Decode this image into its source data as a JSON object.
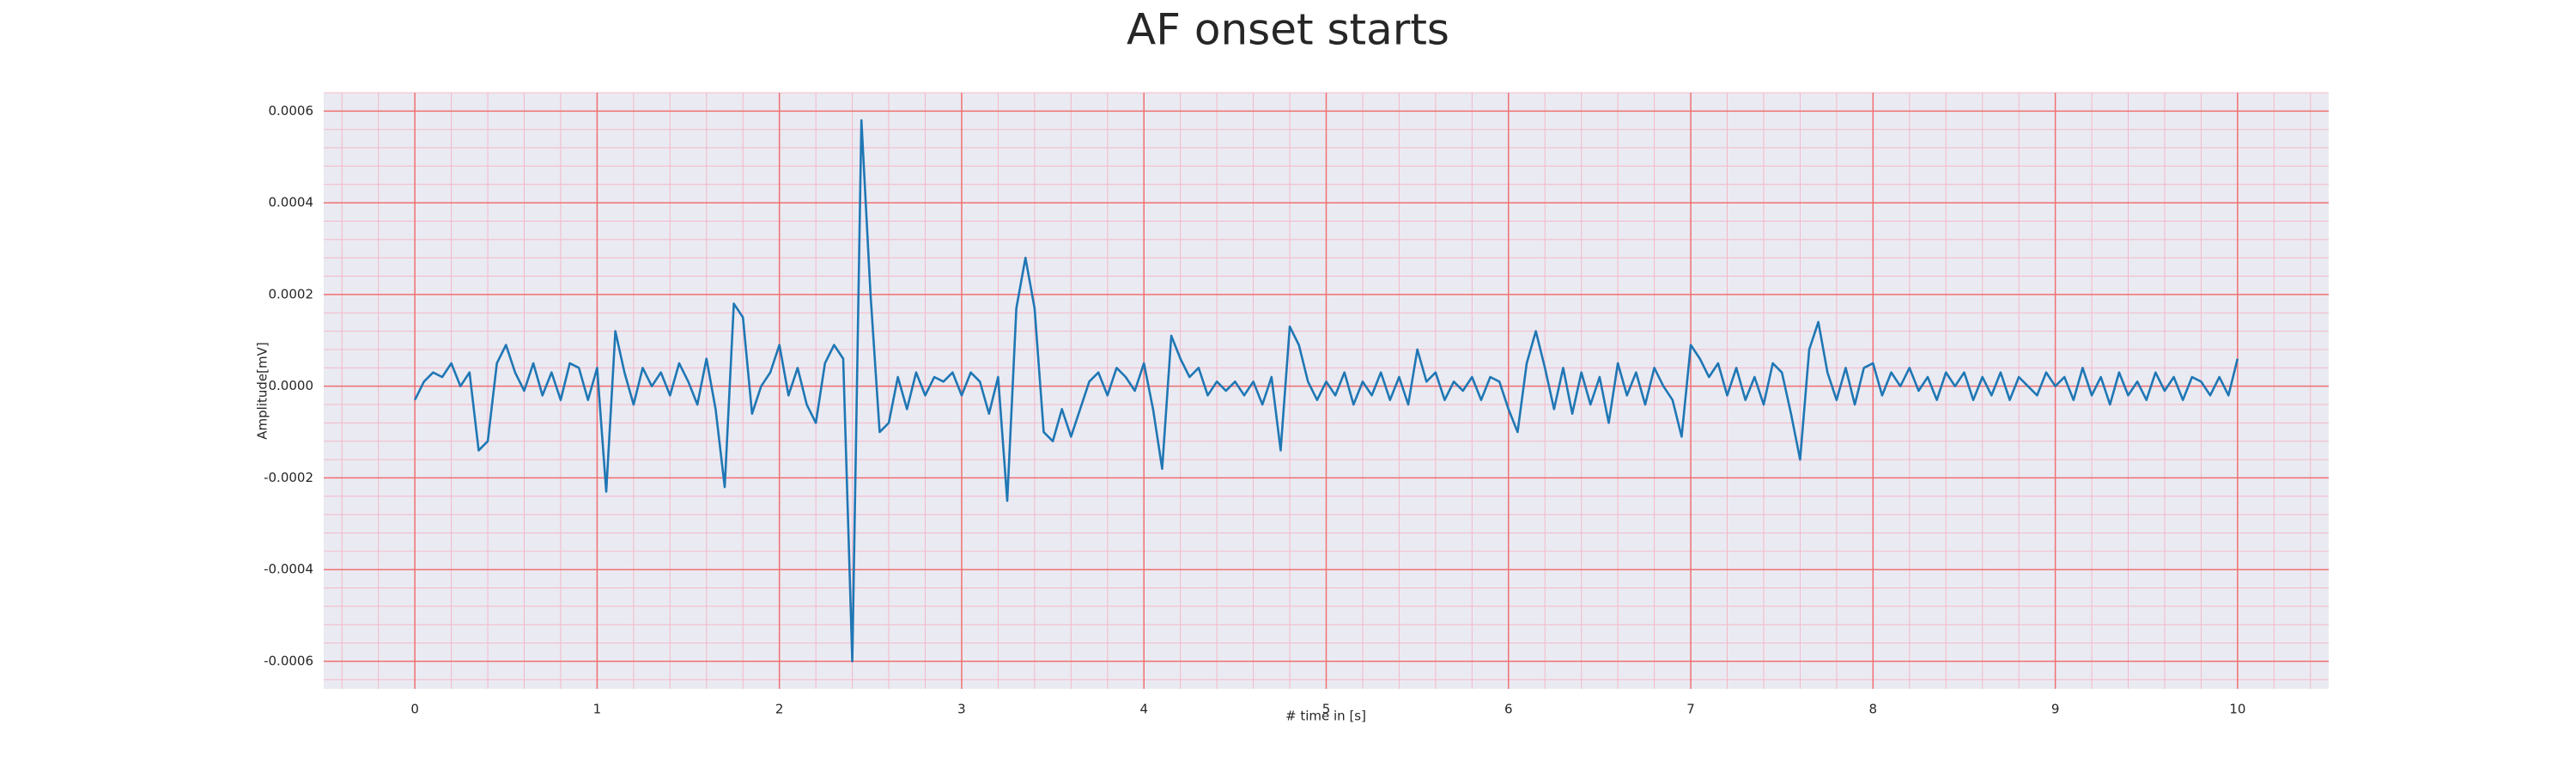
{
  "chart_data": {
    "type": "line",
    "title": "AF onset starts",
    "xlabel": "# time in [s]",
    "ylabel": "Amplitude[mV]",
    "color": "#1f77b4",
    "grid": true,
    "xlim": [
      -0.5,
      10.5
    ],
    "ylim": [
      -0.00066,
      0.00064
    ],
    "xticks": [
      0,
      1,
      2,
      3,
      4,
      5,
      6,
      7,
      8,
      9,
      10
    ],
    "yticks": [
      -0.0006,
      -0.0004,
      -0.0002,
      {
        "value": 0,
        "label": "0.0000"
      },
      0.0002,
      0.0004,
      0.0006
    ],
    "x": [
      0,
      0.05,
      0.1,
      0.15,
      0.2,
      0.25,
      0.3,
      0.35,
      0.4,
      0.45,
      0.5,
      0.55,
      0.6,
      0.65,
      0.7,
      0.75,
      0.8,
      0.85,
      0.9,
      0.95,
      1,
      1.05,
      1.1,
      1.15,
      1.2,
      1.25,
      1.3,
      1.35,
      1.4,
      1.45,
      1.5,
      1.55,
      1.6,
      1.65,
      1.7,
      1.75,
      1.8,
      1.85,
      1.9,
      1.95,
      2,
      2.05,
      2.1,
      2.15,
      2.2,
      2.25,
      2.3,
      2.35,
      2.4,
      2.45,
      2.5,
      2.55,
      2.6,
      2.65,
      2.7,
      2.75,
      2.8,
      2.85,
      2.9,
      2.95,
      3,
      3.05,
      3.1,
      3.15,
      3.2,
      3.25,
      3.3,
      3.35,
      3.4,
      3.45,
      3.5,
      3.55,
      3.6,
      3.65,
      3.7,
      3.75,
      3.8,
      3.85,
      3.9,
      3.95,
      4,
      4.05,
      4.1,
      4.15,
      4.2,
      4.25,
      4.3,
      4.35,
      4.4,
      4.45,
      4.5,
      4.55,
      4.6,
      4.65,
      4.7,
      4.75,
      4.8,
      4.85,
      4.9,
      4.95,
      5,
      5.05,
      5.1,
      5.15,
      5.2,
      5.25,
      5.3,
      5.35,
      5.4,
      5.45,
      5.5,
      5.55,
      5.6,
      5.65,
      5.7,
      5.75,
      5.8,
      5.85,
      5.9,
      5.95,
      6,
      6.05,
      6.1,
      6.15,
      6.2,
      6.25,
      6.3,
      6.35,
      6.4,
      6.45,
      6.5,
      6.55,
      6.6,
      6.65,
      6.7,
      6.75,
      6.8,
      6.85,
      6.9,
      6.95,
      7,
      7.05,
      7.1,
      7.15,
      7.2,
      7.25,
      7.3,
      7.35,
      7.4,
      7.45,
      7.5,
      7.55,
      7.6,
      7.65,
      7.7,
      7.75,
      7.8,
      7.85,
      7.9,
      7.95,
      8,
      8.05,
      8.1,
      8.15,
      8.2,
      8.25,
      8.3,
      8.35,
      8.4,
      8.45,
      8.5,
      8.55,
      8.6,
      8.65,
      8.7,
      8.75,
      8.8,
      8.85,
      8.9,
      8.95,
      9,
      9.05,
      9.1,
      9.15,
      9.2,
      9.25,
      9.3,
      9.35,
      9.4,
      9.45,
      9.5,
      9.55,
      9.6,
      9.65,
      9.7,
      9.75,
      9.8,
      9.85,
      9.9,
      9.95,
      10
    ],
    "values": [
      -3e-05,
      1e-05,
      3e-05,
      2e-05,
      5e-05,
      0,
      3e-05,
      -0.00014,
      -0.00012,
      5e-05,
      9e-05,
      3e-05,
      -1e-05,
      5e-05,
      -2e-05,
      3e-05,
      -3e-05,
      5e-05,
      4e-05,
      -3e-05,
      4e-05,
      -0.00023,
      0.00012,
      3e-05,
      -4e-05,
      4e-05,
      0,
      3e-05,
      -2e-05,
      5e-05,
      1e-05,
      -4e-05,
      6e-05,
      -5e-05,
      -0.00022,
      0.00018,
      0.00015,
      -6e-05,
      0,
      3e-05,
      9e-05,
      -2e-05,
      4e-05,
      -4e-05,
      -8e-05,
      5e-05,
      9e-05,
      6e-05,
      -0.0006,
      0.00058,
      0.0002,
      -0.0001,
      -8e-05,
      2e-05,
      -5e-05,
      3e-05,
      -2e-05,
      2e-05,
      1e-05,
      3e-05,
      -2e-05,
      3e-05,
      1e-05,
      -6e-05,
      2e-05,
      -0.00025,
      0.00017,
      0.00028,
      0.00017,
      -0.0001,
      -0.00012,
      -5e-05,
      -0.00011,
      -5e-05,
      1e-05,
      3e-05,
      -2e-05,
      4e-05,
      2e-05,
      -1e-05,
      5e-05,
      -5e-05,
      -0.00018,
      0.00011,
      6e-05,
      2e-05,
      4e-05,
      -2e-05,
      1e-05,
      -1e-05,
      1e-05,
      -2e-05,
      1e-05,
      -4e-05,
      2e-05,
      -0.00014,
      0.00013,
      9e-05,
      1e-05,
      -3e-05,
      1e-05,
      -2e-05,
      3e-05,
      -4e-05,
      1e-05,
      -2e-05,
      3e-05,
      -3e-05,
      2e-05,
      -4e-05,
      8e-05,
      1e-05,
      3e-05,
      -3e-05,
      1e-05,
      -1e-05,
      2e-05,
      -3e-05,
      2e-05,
      1e-05,
      -5e-05,
      -0.0001,
      5e-05,
      0.00012,
      4e-05,
      -5e-05,
      4e-05,
      -6e-05,
      3e-05,
      -4e-05,
      2e-05,
      -8e-05,
      5e-05,
      -2e-05,
      3e-05,
      -4e-05,
      4e-05,
      0,
      -3e-05,
      -0.00011,
      9e-05,
      6e-05,
      2e-05,
      5e-05,
      -2e-05,
      4e-05,
      -3e-05,
      2e-05,
      -4e-05,
      5e-05,
      3e-05,
      -6e-05,
      -0.00016,
      8e-05,
      0.00014,
      3e-05,
      -3e-05,
      4e-05,
      -4e-05,
      4e-05,
      5e-05,
      -2e-05,
      3e-05,
      0,
      4e-05,
      -1e-05,
      2e-05,
      -3e-05,
      3e-05,
      0,
      3e-05,
      -3e-05,
      2e-05,
      -2e-05,
      3e-05,
      -3e-05,
      2e-05,
      0,
      -2e-05,
      3e-05,
      0,
      2e-05,
      -3e-05,
      4e-05,
      -2e-05,
      2e-05,
      -4e-05,
      3e-05,
      -2e-05,
      1e-05,
      -3e-05,
      3e-05,
      -1e-05,
      2e-05,
      -3e-05,
      2e-05,
      1e-05,
      -2e-05,
      2e-05,
      -2e-05,
      6e-05
    ]
  }
}
